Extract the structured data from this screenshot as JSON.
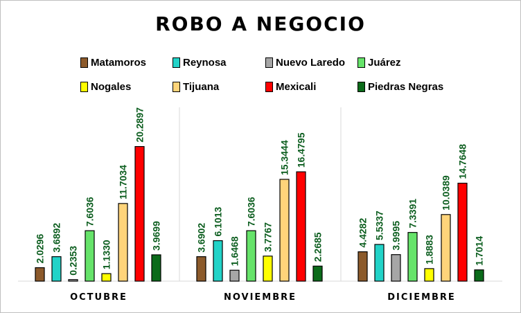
{
  "chart_data": {
    "type": "bar",
    "title": "ROBO A NEGOCIO",
    "categories": [
      "OCTUBRE",
      "NOVIEMBRE",
      "DICIEMBRE"
    ],
    "series": [
      {
        "name": "Matamoros",
        "color": "#8c5a2b",
        "values": [
          2.0296,
          3.6902,
          4.4282
        ],
        "labels": [
          "2.0296",
          "3.6902",
          "4.4282"
        ]
      },
      {
        "name": "Reynosa",
        "color": "#22d3c8",
        "values": [
          3.6892,
          6.1013,
          5.5337
        ],
        "labels": [
          "3.6892",
          "6.1013",
          "5.5337"
        ]
      },
      {
        "name": "Nuevo Laredo",
        "color": "#a6a6a6",
        "values": [
          0.2353,
          1.6468,
          3.9995
        ],
        "labels": [
          "0.2353",
          "1.6468",
          "3.9995"
        ]
      },
      {
        "name": "Juárez",
        "color": "#66e36a",
        "values": [
          7.6036,
          7.6036,
          7.3391
        ],
        "labels": [
          "7.6036",
          "7.6036",
          "7.3391"
        ]
      },
      {
        "name": "Nogales",
        "color": "#ffff00",
        "values": [
          1.133,
          3.7767,
          1.8883
        ],
        "labels": [
          "1.1330",
          "3.7767",
          "1.8883"
        ]
      },
      {
        "name": "Tijuana",
        "color": "#ffd47a",
        "values": [
          11.7034,
          15.3444,
          10.0389
        ],
        "labels": [
          "11.7034",
          "15.3444",
          "10.0389"
        ]
      },
      {
        "name": "Mexicali",
        "color": "#ff0000",
        "values": [
          20.2897,
          16.4795,
          14.7648
        ],
        "labels": [
          "20.2897",
          "16.4795",
          "14.7648"
        ]
      },
      {
        "name": "Piedras Negras",
        "color": "#0b6b1a",
        "values": [
          3.9699,
          2.2685,
          1.7014
        ],
        "labels": [
          "3.9699",
          "2.2685",
          "1.7014"
        ]
      }
    ],
    "label_color": "#0b5d1e",
    "legend_position": "top",
    "grid": false
  }
}
